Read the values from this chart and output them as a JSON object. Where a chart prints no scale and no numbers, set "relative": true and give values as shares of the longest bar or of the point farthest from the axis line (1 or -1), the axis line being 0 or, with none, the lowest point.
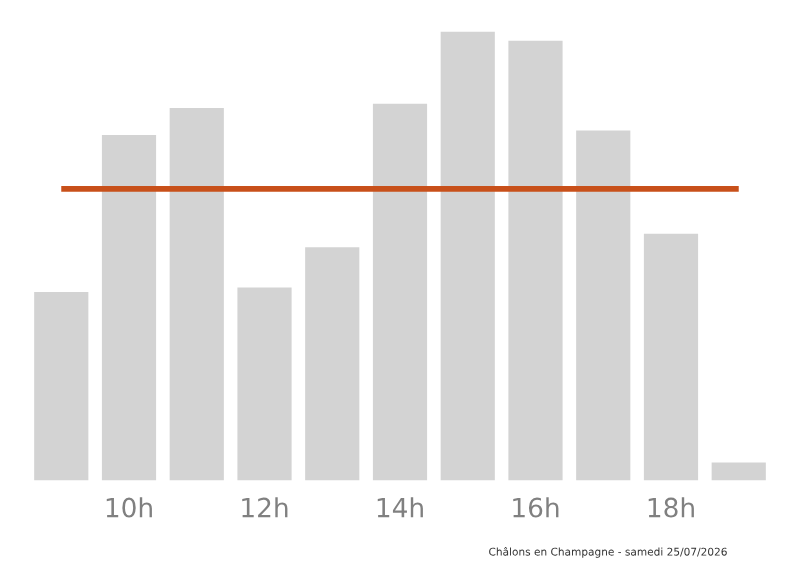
{
  "chart_data": {
    "type": "bar",
    "relative": true,
    "categories": [
      null,
      "10h",
      null,
      "12h",
      null,
      "14h",
      null,
      "16h",
      null,
      "18h",
      null
    ],
    "values": [
      0.42,
      0.77,
      0.83,
      0.43,
      0.52,
      0.84,
      1,
      0.98,
      0.78,
      0.55,
      0.04
    ],
    "color": "#d3d3d3",
    "ref_lines": [
      {
        "axis": "y",
        "value": 0.65,
        "color": "#c8501a",
        "line_style": "solid"
      }
    ],
    "annotations": [
      "Châlons en Champagne - samedi 25/07/2026"
    ],
    "grid": false,
    "legend": false
  }
}
